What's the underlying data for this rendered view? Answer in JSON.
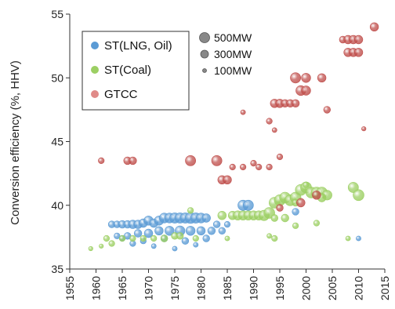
{
  "chart_data": {
    "type": "scatter",
    "title": "",
    "xlabel": "",
    "ylabel": "Conversion efficiency (%, HHV)",
    "xlim": [
      1955,
      2015
    ],
    "ylim": [
      35,
      55
    ],
    "xticks": [
      "1955",
      "1960",
      "1965",
      "1970",
      "1975",
      "1980",
      "1985",
      "1990",
      "1995",
      "2000",
      "2005",
      "2010",
      "2015"
    ],
    "yticks": [
      "35",
      "40",
      "45",
      "50",
      "55"
    ],
    "grid": false,
    "legend_placement": "top-left",
    "legend": [
      "ST(LNG, Oil)",
      "ST(Coal)",
      "GTCC"
    ],
    "size_legend": [
      {
        "label": "500MW",
        "mw": 500
      },
      {
        "label": "300MW",
        "mw": 300
      },
      {
        "label": "100MW",
        "mw": 100
      }
    ],
    "series": [
      {
        "name": "ST(LNG, Oil)",
        "color": "#5b9bd5",
        "points": [
          [
            1963,
            38.5,
            200
          ],
          [
            1964,
            38.5,
            200
          ],
          [
            1965,
            38.5,
            250
          ],
          [
            1966,
            38.5,
            250
          ],
          [
            1967,
            38.5,
            300
          ],
          [
            1968,
            38.5,
            300
          ],
          [
            1969,
            38.6,
            300
          ],
          [
            1970,
            38.8,
            350
          ],
          [
            1971,
            38.6,
            300
          ],
          [
            1972,
            38.8,
            350
          ],
          [
            1973,
            39.0,
            400
          ],
          [
            1974,
            39.0,
            400
          ],
          [
            1975,
            39.0,
            450
          ],
          [
            1976,
            39.0,
            450
          ],
          [
            1977,
            39.0,
            450
          ],
          [
            1978,
            39.0,
            500
          ],
          [
            1979,
            39.0,
            450
          ],
          [
            1980,
            39.0,
            400
          ],
          [
            1981,
            39.0,
            300
          ],
          [
            1966,
            37.6,
            200
          ],
          [
            1968,
            37.8,
            250
          ],
          [
            1970,
            37.8,
            300
          ],
          [
            1972,
            38.0,
            300
          ],
          [
            1974,
            38.0,
            350
          ],
          [
            1976,
            38.0,
            400
          ],
          [
            1978,
            38.0,
            350
          ],
          [
            1980,
            38.0,
            300
          ],
          [
            1982,
            38.0,
            250
          ],
          [
            1984,
            38.0,
            200
          ],
          [
            1965,
            37.4,
            150
          ],
          [
            1969,
            37.2,
            150
          ],
          [
            1973,
            37.4,
            200
          ],
          [
            1977,
            37.2,
            200
          ],
          [
            1981,
            37.4,
            200
          ],
          [
            1971,
            36.8,
            100
          ],
          [
            1975,
            36.6,
            100
          ],
          [
            1979,
            36.9,
            100
          ],
          [
            1985,
            38.5,
            150
          ],
          [
            1983,
            38.5,
            200
          ],
          [
            1988,
            40.0,
            450
          ],
          [
            1989,
            40.0,
            450
          ],
          [
            1998,
            39.5,
            200
          ],
          [
            2010,
            37.4,
            100
          ],
          [
            1964,
            37.6,
            150
          ],
          [
            1967,
            37.0,
            150
          ]
        ]
      },
      {
        "name": "ST(Coal)",
        "color": "#9ccf63",
        "points": [
          [
            1959,
            36.6,
            80
          ],
          [
            1961,
            36.8,
            80
          ],
          [
            1963,
            37.0,
            150
          ],
          [
            1962,
            37.4,
            150
          ],
          [
            1965,
            37.4,
            150
          ],
          [
            1967,
            37.4,
            150
          ],
          [
            1969,
            37.4,
            150
          ],
          [
            1971,
            37.4,
            150
          ],
          [
            1973,
            37.4,
            200
          ],
          [
            1975,
            37.6,
            200
          ],
          [
            1976,
            37.6,
            200
          ],
          [
            1978,
            39.6,
            150
          ],
          [
            1979,
            37.4,
            150
          ],
          [
            1984,
            39.2,
            300
          ],
          [
            1986,
            39.2,
            300
          ],
          [
            1987,
            39.2,
            350
          ],
          [
            1988,
            39.2,
            350
          ],
          [
            1989,
            39.2,
            350
          ],
          [
            1990,
            39.2,
            350
          ],
          [
            1991,
            39.2,
            350
          ],
          [
            1992,
            39.2,
            450
          ],
          [
            1993,
            39.4,
            500
          ],
          [
            1994,
            40.2,
            500
          ],
          [
            1995,
            40.4,
            500
          ],
          [
            1996,
            40.6,
            500
          ],
          [
            1997,
            40.4,
            500
          ],
          [
            1998,
            40.6,
            500
          ],
          [
            1999,
            41.2,
            500
          ],
          [
            2000,
            41.4,
            500
          ],
          [
            2001,
            41.0,
            500
          ],
          [
            2002,
            41.0,
            500
          ],
          [
            2003,
            41.0,
            500
          ],
          [
            2004,
            40.8,
            400
          ],
          [
            2009,
            41.4,
            450
          ],
          [
            2010,
            40.8,
            500
          ],
          [
            1994,
            37.4,
            150
          ],
          [
            2002,
            38.6,
            150
          ],
          [
            1998,
            38.4,
            150
          ],
          [
            2000,
            41.6,
            150
          ],
          [
            2008,
            37.4,
            100
          ],
          [
            1994,
            39.0,
            200
          ],
          [
            1996,
            39.0,
            250
          ],
          [
            1985,
            37.4,
            100
          ],
          [
            1993,
            37.6,
            100
          ],
          [
            1998,
            40.2,
            200
          ],
          [
            2003,
            40.6,
            300
          ]
        ]
      },
      {
        "name": "GTCC",
        "color": "#c0504d",
        "points": [
          [
            1961,
            43.5,
            150
          ],
          [
            1966,
            43.5,
            250
          ],
          [
            1967,
            43.5,
            250
          ],
          [
            1978,
            43.5,
            450
          ],
          [
            1983,
            43.5,
            450
          ],
          [
            1984,
            42.0,
            300
          ],
          [
            1985,
            42.0,
            300
          ],
          [
            1986,
            43.0,
            150
          ],
          [
            1988,
            43.0,
            150
          ],
          [
            1991,
            43.0,
            150
          ],
          [
            1993,
            43.0,
            150
          ],
          [
            1995,
            43.8,
            150
          ],
          [
            1988,
            47.3,
            100
          ],
          [
            1993,
            46.6,
            150
          ],
          [
            1994,
            45.9,
            100
          ],
          [
            1994,
            48.0,
            300
          ],
          [
            1995,
            48.0,
            300
          ],
          [
            1996,
            48.0,
            250
          ],
          [
            1997,
            48.0,
            250
          ],
          [
            1998,
            48.0,
            250
          ],
          [
            1998,
            50.0,
            450
          ],
          [
            1999,
            49.0,
            400
          ],
          [
            2000,
            49.0,
            350
          ],
          [
            2000,
            50.0,
            350
          ],
          [
            2003,
            50.0,
            300
          ],
          [
            2004,
            47.5,
            200
          ],
          [
            2007,
            53.0,
            200
          ],
          [
            2008,
            53.0,
            300
          ],
          [
            2009,
            53.0,
            300
          ],
          [
            2010,
            53.0,
            300
          ],
          [
            2008,
            52.0,
            300
          ],
          [
            2009,
            52.0,
            300
          ],
          [
            2010,
            52.0,
            300
          ],
          [
            2011,
            46.0,
            80
          ],
          [
            2013,
            54.0,
            300
          ],
          [
            1999,
            40.2,
            300
          ],
          [
            2002,
            40.8,
            300
          ],
          [
            1995,
            39.8,
            200
          ],
          [
            1990,
            43.3,
            150
          ]
        ]
      }
    ]
  }
}
